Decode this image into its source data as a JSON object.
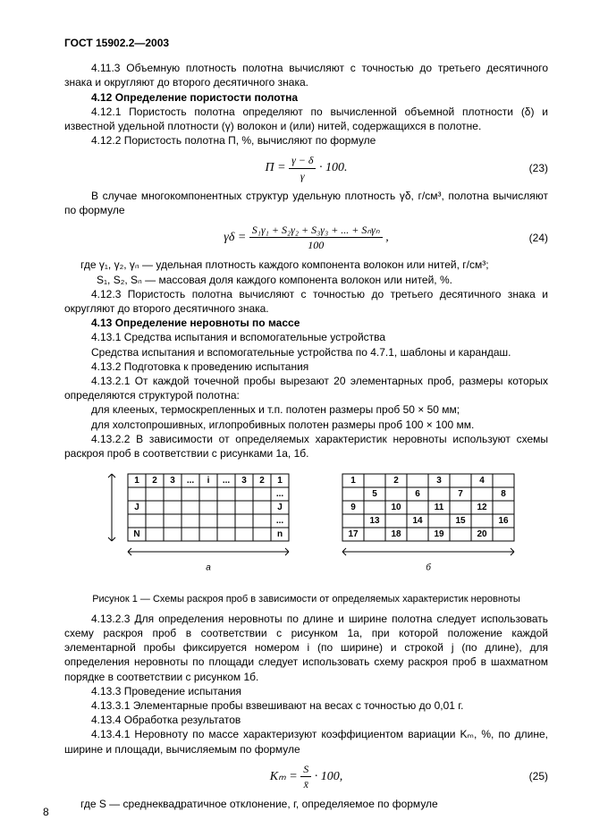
{
  "doc_title": "ГОСТ 15902.2—2003",
  "p_4_11_3": "4.11.3 Объемную плотность полотна вычисляют с точностью до третьего десятичного знака и округляют до второго десятичного знака.",
  "h_4_12": "4.12  Определение пористости полотна",
  "p_4_12_1": "4.12.1 Пористость полотна определяют по вычисленной объемной плотности (δ) и известной удельной плотности (γ) волокон и (или) нитей, содержащихся в полотне.",
  "p_4_12_2": "4.12.2 Пористость полотна П, %, вычисляют по формуле",
  "eq23_lhs": "П  =",
  "eq23_num": "γ − δ",
  "eq23_den": "γ",
  "eq23_tail": " · 100.",
  "eq23_num_label": "(23)",
  "p_multicomp": "В случае многокомпонентных структур удельную плотность γδ, г/см³, полотна вычисляют по формуле",
  "eq24_lhs": "γδ  =",
  "eq24_num": "S₁γ₁ + S₂γ₂ + S₃γ₃ + ... + Sₙγₙ",
  "eq24_den": "100",
  "eq24_tail": ",",
  "eq24_num_label": "(24)",
  "where_gamma": "где γ₁, γ₂, γₙ — удельная плотность каждого компонента волокон или нитей, г/см³;",
  "where_S": "S₁, S₂, Sₙ — массовая доля каждого компонента волокон или нитей, %.",
  "p_4_12_3": "4.12.3 Пористость полотна вычисляют с точностью до третьего десятичного знака и округляют до второго десятичного знака.",
  "h_4_13": "4.13  Определение неровноты по массе",
  "p_4_13_1": "4.13.1 Средства испытания и вспомогательные устройства",
  "p_4_13_1b": "Средства испытания и вспомогательные устройства по 4.7.1, шаблоны и карандаш.",
  "p_4_13_2": "4.13.2 Подготовка к проведению испытания",
  "p_4_13_2_1": "4.13.2.1 От каждой точечной пробы вырезают 20 элементарных проб, размеры которых определяются структурой полотна:",
  "p_4_13_2_1a": "для клееных, термоскрепленных и т.п. полотен размеры проб 50 × 50 мм;",
  "p_4_13_2_1b": "для холстопрошивных, иглопробивных полотен размеры проб 100 × 100 мм.",
  "p_4_13_2_2": "4.13.2.2 В зависимости от определяемых характеристик неровноты используют схемы раскроя проб в соответствии с рисунками 1а, 1б.",
  "figure_caption": "Рисунок 1 — Схемы раскроя проб в зависимости от определяемых характеристик неровноты",
  "p_4_13_2_3": "4.13.2.3 Для определения неровноты по длине и ширине полотна следует использовать схему раскроя проб в соответствии с рисунком 1а, при которой положение каждой элементарной пробы фиксируется номером i (по ширине) и строкой j (по длине), для определения неровноты по площади следует использовать схему раскроя проб в шахматном порядке в соответствии с рисунком 1б.",
  "p_4_13_3": "4.13.3 Проведение испытания",
  "p_4_13_3_1": "4.13.3.1 Элементарные пробы взвешивают на весах с точностью до 0,01 г.",
  "p_4_13_4": "4.13.4 Обработка результатов",
  "p_4_13_4_1": "4.13.4.1 Неровноту по массе характеризуют коэффициентом вариации Kₘ, %, по длине, ширине и площади, вычисляемым по формуле",
  "eq25_lhs": "Kₘ  =",
  "eq25_num": "S",
  "eq25_den": "x̄",
  "eq25_tail": " · 100,",
  "eq25_num_label": "(25)",
  "where_S2": "где  S — среднеквадратичное отклонение, г, определяемое по формуле",
  "page_number": "8",
  "fig": {
    "label_a": "а",
    "label_b": "б",
    "gridA_cells": [
      "1",
      "2",
      "3",
      "...",
      "i",
      "...",
      "3",
      "2",
      "1"
    ],
    "gridA_rowJ": "J",
    "gridA_rowN": "N",
    "gridA_rown": "n",
    "gridB_row1": [
      "1",
      "",
      "2",
      "",
      "3",
      "",
      "4",
      ""
    ],
    "gridB_row2": [
      "",
      "5",
      "",
      "6",
      "",
      "7",
      "",
      "8"
    ],
    "gridB_row3": [
      "9",
      "",
      "10",
      "",
      "11",
      "",
      "12",
      ""
    ],
    "gridB_row4": [
      "",
      "13",
      "",
      "14",
      "",
      "15",
      "",
      "16"
    ],
    "gridB_row5": [
      "17",
      "",
      "18",
      "",
      "19",
      "",
      "20",
      ""
    ],
    "stroke": "#000000"
  }
}
